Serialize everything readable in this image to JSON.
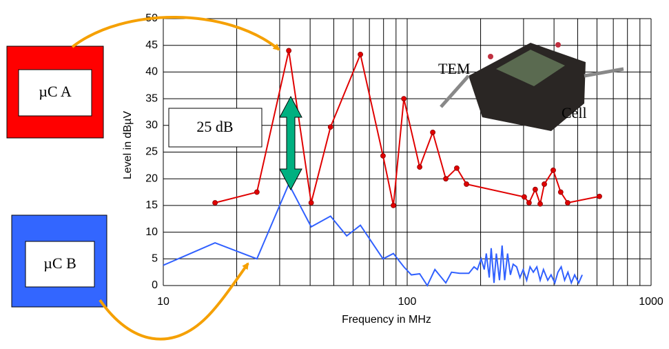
{
  "chart_data": {
    "type": "line",
    "xlabel": "Frequency in MHz",
    "ylabel": "Level in dBµV",
    "log_x": true,
    "grid": true,
    "minor_grid": true,
    "xlim": [
      10,
      1000
    ],
    "xticks": [
      10,
      100,
      1000
    ],
    "ylim": [
      0,
      50
    ],
    "yticks": [
      0,
      5,
      10,
      15,
      20,
      25,
      30,
      35,
      40,
      45,
      50
    ],
    "annotations": [
      "µC A",
      "µC B",
      "25 dB",
      "TEM",
      "Cell"
    ],
    "series": [
      {
        "name": "µC A",
        "color": "#e00000",
        "markers": true,
        "x": [
          16.3,
          24.2,
          32.7,
          40.4,
          48.5,
          64.3,
          79.6,
          87.8,
          96.9,
          112.5,
          127.3,
          144,
          159.7,
          175,
          302,
          316,
          335,
          351,
          365,
          397,
          426,
          455,
          614
        ],
        "values": [
          15.5,
          17.5,
          44,
          15.5,
          29.7,
          43.3,
          24.3,
          15,
          35,
          22.2,
          28.7,
          20,
          22,
          19,
          16.6,
          15.5,
          18,
          15.3,
          19,
          21.6,
          17.5,
          15.5,
          16.7
        ]
      },
      {
        "name": "µC B",
        "color": "#3060ff",
        "markers": false,
        "x": [
          10,
          16.3,
          24.2,
          32.7,
          40.4,
          48.5,
          56.5,
          64.3,
          79.6,
          87.8,
          96.9,
          104,
          112.5,
          120.9,
          129.9,
          144,
          152,
          164,
          179,
          188,
          194,
          201,
          207,
          211,
          217,
          221,
          227,
          232,
          239,
          245,
          251,
          258,
          265,
          272,
          281,
          290,
          299,
          309,
          319,
          329,
          340,
          351,
          362,
          377,
          389,
          403,
          415,
          428,
          442,
          456,
          471,
          486,
          505,
          522
        ],
        "values": [
          3.8,
          8,
          5,
          19,
          11,
          13,
          9.3,
          11.3,
          5,
          6,
          3.5,
          2,
          2.2,
          0,
          3,
          0.5,
          2.5,
          2.3,
          2.3,
          3.5,
          3,
          5,
          3,
          6,
          1.5,
          7,
          0.5,
          6,
          1,
          7.5,
          1,
          6,
          2,
          4,
          3.5,
          1.5,
          3,
          1,
          3.5,
          2.5,
          3.5,
          1,
          3,
          1,
          2,
          0.5,
          2.5,
          3.5,
          1,
          2.5,
          0.5,
          2,
          0.5,
          2
        ]
      }
    ]
  }
}
